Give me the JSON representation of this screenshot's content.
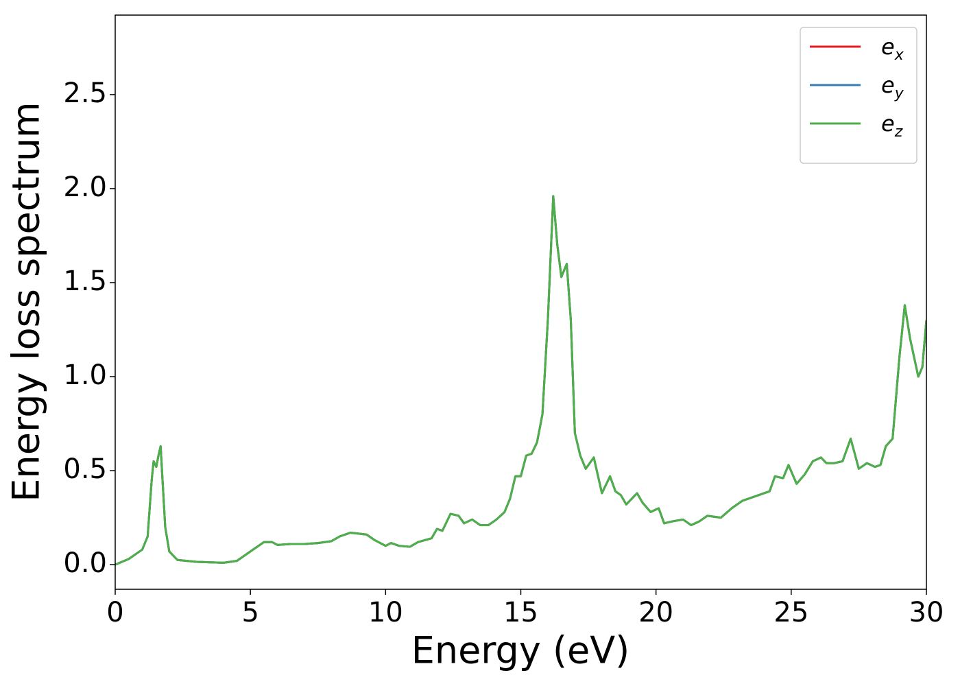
{
  "chart_data": {
    "type": "line",
    "xlabel": "Energy (eV)",
    "ylabel": "Energy loss spectrum",
    "xlim": [
      0,
      30
    ],
    "ylim": [
      -0.131,
      2.923
    ],
    "xticks": [
      0,
      5,
      10,
      15,
      20,
      25,
      30
    ],
    "yticks": [
      {
        "value": 0,
        "label": "0.0"
      },
      0.5,
      {
        "value": 1,
        "label": "1.0"
      },
      1.5,
      {
        "value": 2,
        "label": "2.0"
      },
      2.5
    ],
    "grid": false,
    "legend": "upper right",
    "x": [
      0,
      0.5,
      1.0,
      1.2,
      1.35,
      1.42,
      1.52,
      1.6,
      1.68,
      1.75,
      1.85,
      2.0,
      2.3,
      3.0,
      4.0,
      4.5,
      5.0,
      5.5,
      5.8,
      6.0,
      6.5,
      7.0,
      7.5,
      8.0,
      8.3,
      8.7,
      9.0,
      9.3,
      9.6,
      10.0,
      10.2,
      10.5,
      10.9,
      11.2,
      11.7,
      11.9,
      12.1,
      12.4,
      12.7,
      12.9,
      13.2,
      13.5,
      13.8,
      14.1,
      14.4,
      14.6,
      14.8,
      15.0,
      15.2,
      15.4,
      15.6,
      15.8,
      16.0,
      16.2,
      16.35,
      16.5,
      16.7,
      16.85,
      17.0,
      17.2,
      17.4,
      17.7,
      18.0,
      18.3,
      18.5,
      18.7,
      18.9,
      19.3,
      19.5,
      19.8,
      20.1,
      20.3,
      20.6,
      21.0,
      21.3,
      21.6,
      21.9,
      22.4,
      22.8,
      23.2,
      23.8,
      24.2,
      24.4,
      24.7,
      24.9,
      25.2,
      25.5,
      25.8,
      26.1,
      26.3,
      26.6,
      26.9,
      27.2,
      27.5,
      27.8,
      28.1,
      28.3,
      28.5,
      28.75,
      29.0,
      29.2,
      29.4,
      29.7,
      29.85,
      30.0
    ],
    "series": [
      {
        "name": "ex",
        "color": "#e41a1c",
        "values": [
          0,
          0.03,
          0.08,
          0.15,
          0.45,
          0.55,
          0.52,
          0.58,
          0.63,
          0.45,
          0.2,
          0.07,
          0.025,
          0.015,
          0.01,
          0.02,
          0.07,
          0.12,
          0.12,
          0.105,
          0.11,
          0.11,
          0.115,
          0.125,
          0.15,
          0.17,
          0.165,
          0.16,
          0.13,
          0.1,
          0.115,
          0.1,
          0.095,
          0.12,
          0.14,
          0.19,
          0.18,
          0.27,
          0.26,
          0.22,
          0.24,
          0.21,
          0.21,
          0.24,
          0.28,
          0.35,
          0.47,
          0.47,
          0.58,
          0.59,
          0.65,
          0.8,
          1.3,
          1.96,
          1.7,
          1.53,
          1.6,
          1.3,
          0.7,
          0.58,
          0.51,
          0.57,
          0.38,
          0.47,
          0.39,
          0.37,
          0.32,
          0.38,
          0.33,
          0.28,
          0.3,
          0.22,
          0.23,
          0.24,
          0.21,
          0.23,
          0.26,
          0.25,
          0.3,
          0.34,
          0.37,
          0.39,
          0.47,
          0.46,
          0.53,
          0.43,
          0.48,
          0.55,
          0.57,
          0.54,
          0.54,
          0.55,
          0.67,
          0.51,
          0.54,
          0.52,
          0.53,
          0.63,
          0.67,
          1.1,
          1.38,
          1.2,
          1.0,
          1.05,
          1.3
        ]
      },
      {
        "name": "ey",
        "color": "#377eb8",
        "values": [
          0,
          0.03,
          0.08,
          0.15,
          0.45,
          0.55,
          0.52,
          0.58,
          0.63,
          0.45,
          0.2,
          0.07,
          0.025,
          0.015,
          0.01,
          0.02,
          0.07,
          0.12,
          0.12,
          0.105,
          0.11,
          0.11,
          0.115,
          0.125,
          0.15,
          0.17,
          0.165,
          0.16,
          0.13,
          0.1,
          0.115,
          0.1,
          0.095,
          0.12,
          0.14,
          0.19,
          0.18,
          0.27,
          0.26,
          0.22,
          0.24,
          0.21,
          0.21,
          0.24,
          0.28,
          0.35,
          0.47,
          0.47,
          0.58,
          0.59,
          0.65,
          0.8,
          1.3,
          1.96,
          1.7,
          1.53,
          1.6,
          1.3,
          0.7,
          0.58,
          0.51,
          0.57,
          0.38,
          0.47,
          0.39,
          0.37,
          0.32,
          0.38,
          0.33,
          0.28,
          0.3,
          0.22,
          0.23,
          0.24,
          0.21,
          0.23,
          0.26,
          0.25,
          0.3,
          0.34,
          0.37,
          0.39,
          0.47,
          0.46,
          0.53,
          0.43,
          0.48,
          0.55,
          0.57,
          0.54,
          0.54,
          0.55,
          0.67,
          0.51,
          0.54,
          0.52,
          0.53,
          0.63,
          0.67,
          1.1,
          1.38,
          1.2,
          1.0,
          1.05,
          1.3
        ]
      },
      {
        "name": "ez",
        "color": "#4daf4a",
        "values": [
          0,
          0.03,
          0.08,
          0.15,
          0.45,
          0.55,
          0.52,
          0.58,
          0.63,
          0.45,
          0.2,
          0.07,
          0.025,
          0.015,
          0.01,
          0.02,
          0.07,
          0.12,
          0.12,
          0.105,
          0.11,
          0.11,
          0.115,
          0.125,
          0.15,
          0.17,
          0.165,
          0.16,
          0.13,
          0.1,
          0.115,
          0.1,
          0.095,
          0.12,
          0.14,
          0.19,
          0.18,
          0.27,
          0.26,
          0.22,
          0.24,
          0.21,
          0.21,
          0.24,
          0.28,
          0.35,
          0.47,
          0.47,
          0.58,
          0.59,
          0.65,
          0.8,
          1.3,
          1.96,
          1.7,
          1.53,
          1.6,
          1.3,
          0.7,
          0.58,
          0.51,
          0.57,
          0.38,
          0.47,
          0.39,
          0.37,
          0.32,
          0.38,
          0.33,
          0.28,
          0.3,
          0.22,
          0.23,
          0.24,
          0.21,
          0.23,
          0.26,
          0.25,
          0.3,
          0.34,
          0.37,
          0.39,
          0.47,
          0.46,
          0.53,
          0.43,
          0.48,
          0.55,
          0.57,
          0.54,
          0.54,
          0.55,
          0.67,
          0.51,
          0.54,
          0.52,
          0.53,
          0.63,
          0.67,
          1.1,
          1.38,
          1.2,
          1.0,
          1.05,
          1.3
        ]
      }
    ]
  }
}
